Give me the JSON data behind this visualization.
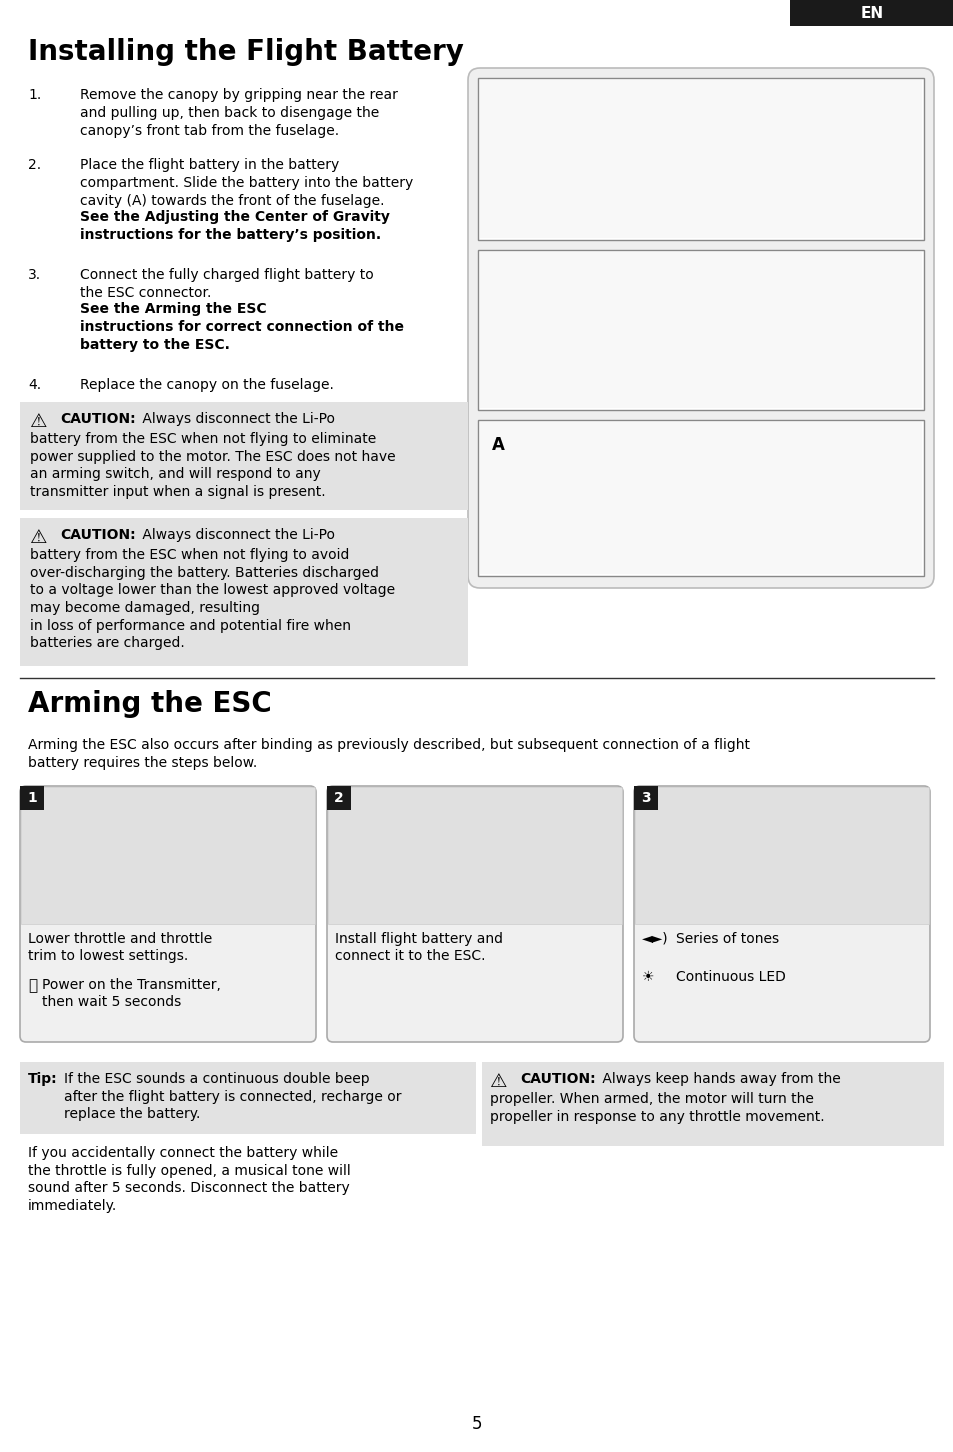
{
  "page_bg": "#ffffff",
  "header_bg": "#1a1a1a",
  "header_text": "EN",
  "header_text_color": "#ffffff",
  "caution_bg": "#e2e2e2",
  "section1_title": "Installing the Flight Battery",
  "section2_title": "Arming the ESC",
  "section2_intro": "Arming the ESC also occurs after binding as previously described, but subsequent connection of a flight\nbattery requires the steps below.",
  "divider_color": "#333333",
  "image_border": "#888888",
  "step_box_bg": "#f0f0f0",
  "step_box_border": "#aaaaaa",
  "right_panel_bg": "#efefef",
  "right_panel_border": "#bbbbbb",
  "page_number": "5"
}
